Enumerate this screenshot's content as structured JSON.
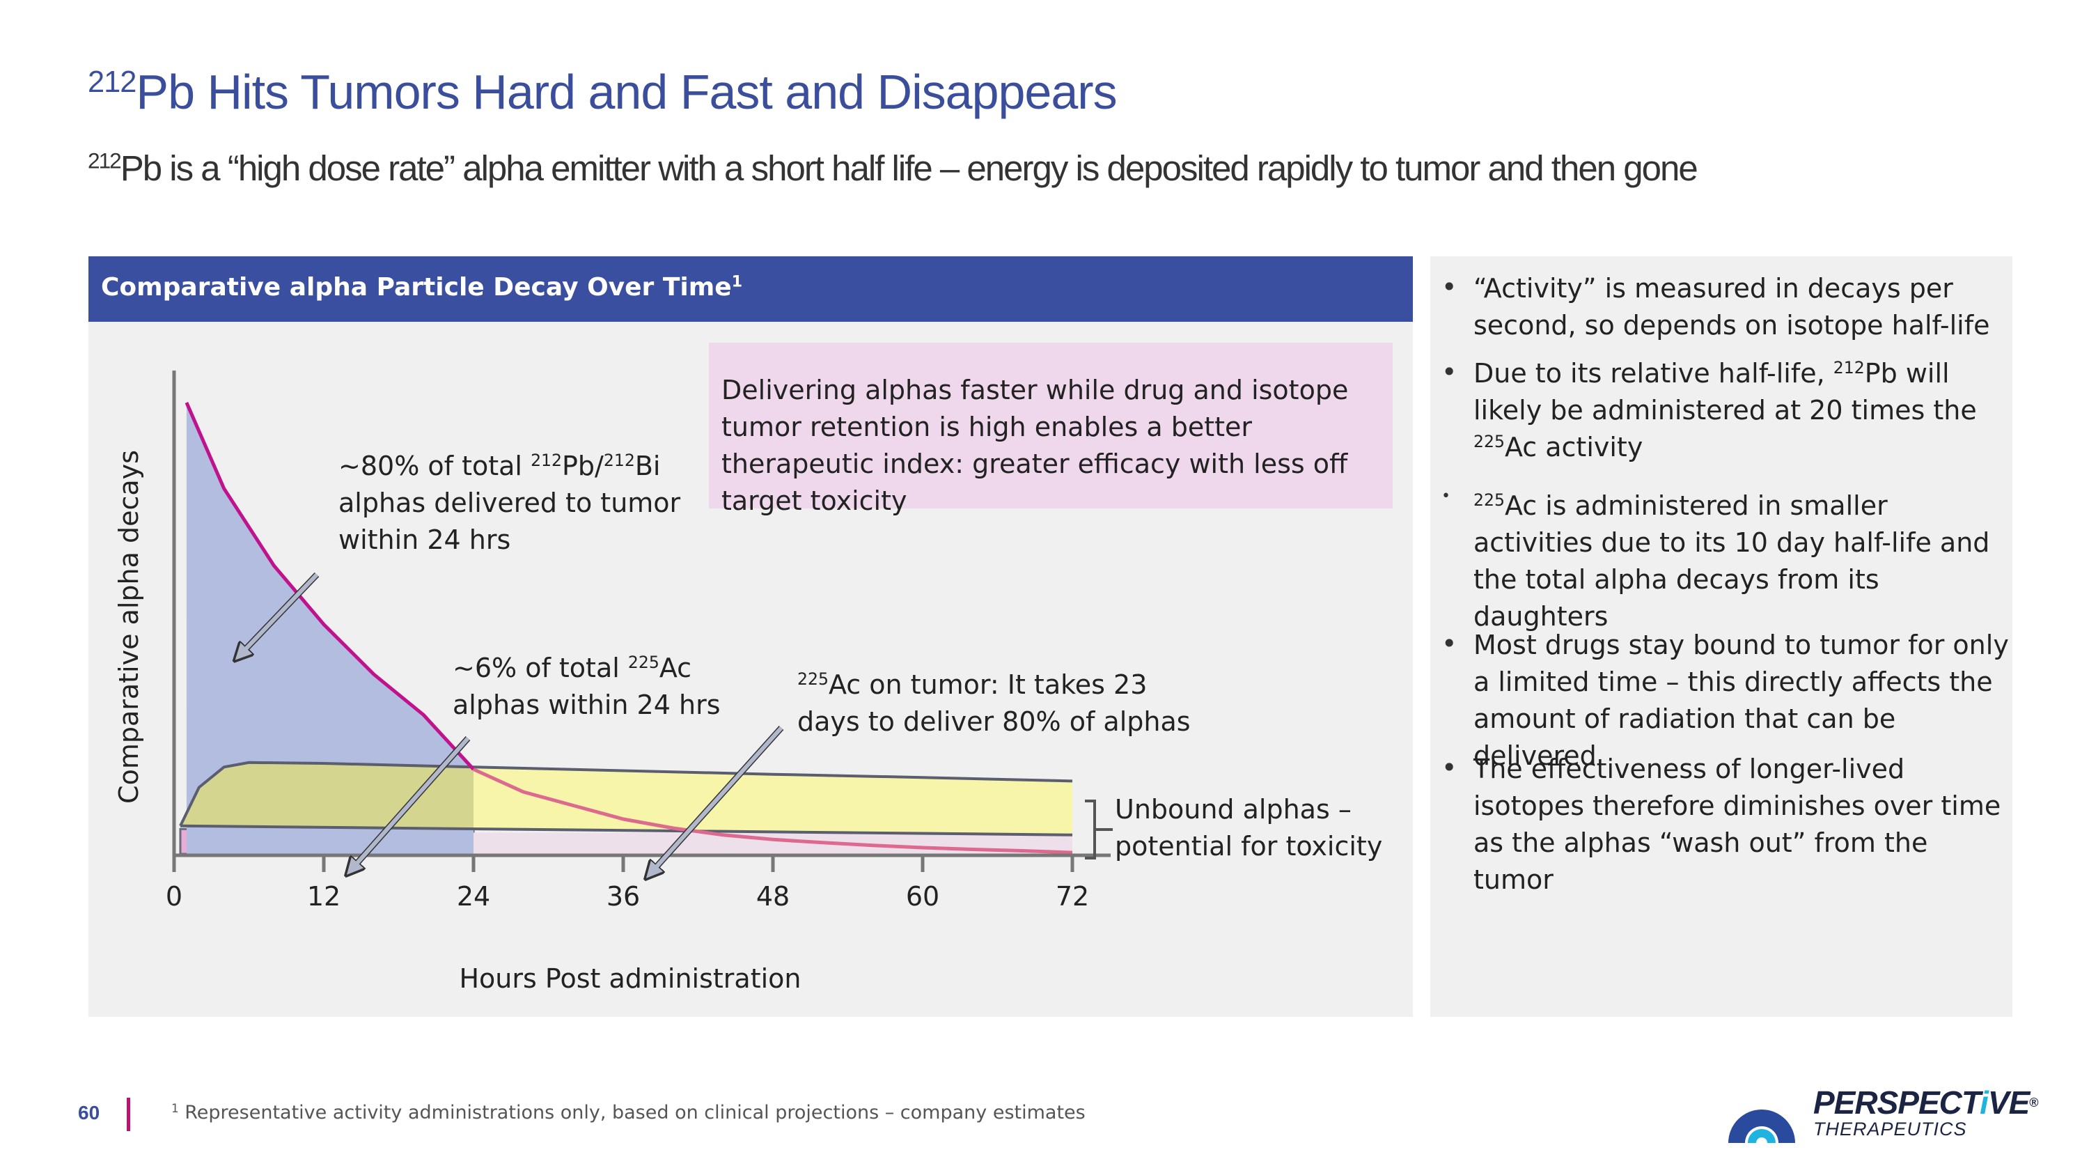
{
  "header": {
    "title_sup": "212",
    "title_text": "Pb Hits Tumors Hard and Fast and Disappears",
    "subtitle_sup": "212",
    "subtitle_text": "Pb is a “high dose rate” alpha emitter with a short half life – energy is deposited rapidly to tumor and then gone"
  },
  "panel": {
    "header": "Comparative alpha Particle Decay Over Time",
    "header_footnote_mark": "1"
  },
  "callout": {
    "text": "Delivering alphas faster while drug and isotope tumor retention is high enables a better therapeutic index: greater efficacy with less off target toxicity"
  },
  "annotations": {
    "pb": {
      "line1_prefix": "~80% of total ",
      "line1_sup1": "212",
      "line1_mid": "Pb/",
      "line1_sup2": "212",
      "line1_suffix": "Bi",
      "line2": "alphas delivered to tumor",
      "line3": "within 24 hrs"
    },
    "ac": {
      "line1_prefix": "~6% of total ",
      "line1_sup": "225",
      "line1_suffix": "Ac",
      "line2": "alphas within 24 hrs"
    },
    "ac_tumor": {
      "line1_sup": "225",
      "line1_suffix": "Ac on tumor: It takes 23",
      "line2": "days to deliver 80% of alphas"
    },
    "unbound": {
      "line1": "Unbound alphas –",
      "line2": "potential for toxicity"
    }
  },
  "chart_data": {
    "type": "area",
    "title": "Comparative alpha Particle Decay Over Time",
    "xlabel": "Hours Post administration",
    "ylabel": "Comparative alpha decays",
    "xlim": [
      0,
      72
    ],
    "ylim": [
      0,
      100
    ],
    "x_ticks": [
      0,
      12,
      24,
      36,
      48,
      60,
      72
    ],
    "grid": false,
    "series": [
      {
        "name": "212Pb",
        "color": "#c0128c",
        "x": [
          1,
          4,
          8,
          12,
          16,
          20,
          24,
          28,
          32,
          36,
          40,
          44,
          48,
          52,
          56,
          60,
          64,
          68,
          72
        ],
        "y": [
          100,
          81,
          64,
          51,
          40,
          31,
          19,
          14,
          11,
          8,
          6,
          4.5,
          3.5,
          2.8,
          2.2,
          1.7,
          1.3,
          1.0,
          0.6
        ]
      },
      {
        "name": "225Ac",
        "color": "#5a5e6e",
        "x": [
          0.5,
          2,
          4,
          6,
          12,
          24,
          36,
          48,
          60,
          72
        ],
        "y": [
          6.5,
          15,
          19.5,
          20.5,
          20.3,
          19.5,
          18.7,
          17.9,
          17.2,
          16.4
        ]
      },
      {
        "name": "225Ac on tumor",
        "color": "#5a5e6e",
        "x": [
          0.5,
          72
        ],
        "y": [
          6.5,
          4.5
        ]
      }
    ]
  },
  "bullets": [
    {
      "text": "“Activity” is measured in decays per second, so depends on isotope half-life"
    },
    {
      "p1": "Due to its relative half-life, ",
      "sup1": "212",
      "p2": "Pb will likely be administered at 20 times the ",
      "sup2": "225",
      "p3": "Ac activity"
    },
    {
      "sup": "225",
      "text": "Ac is administered in smaller activities due to its 10 day half-life and the total alpha decays from its daughters"
    },
    {
      "text": "Most drugs stay bound to tumor for only a limited time – this directly affects the amount of radiation that can be delivered"
    },
    {
      "text": "The effectiveness of longer-lived isotopes therefore diminishes over time as the alphas “wash out” from the tumor"
    }
  ],
  "footer": {
    "page_number": "60",
    "footnote_mark": "1",
    "footnote": "Representative activity administrations only, based on clinical projections – company estimates"
  },
  "logo": {
    "name_part1": "PERSPECT",
    "name_i": "i",
    "name_part2": "VE",
    "registered": "®",
    "tagline": "THERAPEUTICS"
  },
  "colors": {
    "title": "#3a4e9c",
    "header_bg": "#3a4fa0",
    "pb_curve": "#c0128c",
    "pb_fill": "#b3bde0",
    "ac_fill": "#f6f59e",
    "tumor_bar": "#e6aed6",
    "callout_bg": "#f0d8ec"
  }
}
